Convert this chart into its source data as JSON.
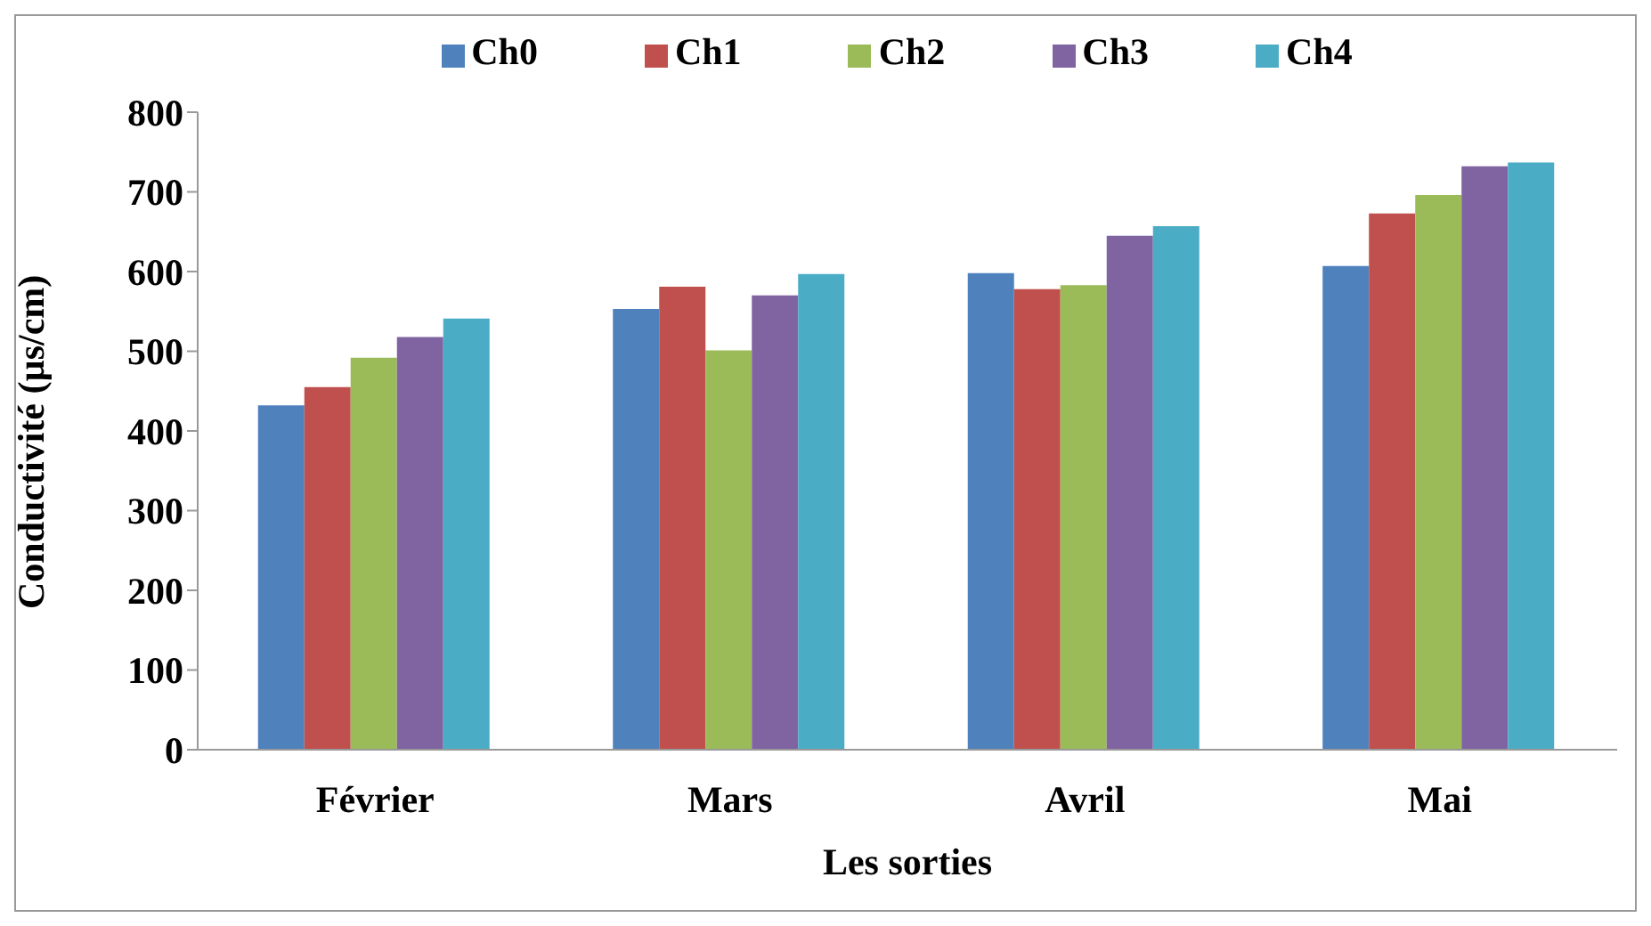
{
  "chart_data": {
    "type": "bar",
    "xlabel": "Les sorties",
    "ylabel": "Conductivité (µs/cm)",
    "categories": [
      "Février",
      "Mars",
      "Avril",
      "Mai"
    ],
    "series": [
      {
        "name": "Ch0",
        "color": "#4f81bd",
        "values": [
          432,
          553,
          598,
          607
        ]
      },
      {
        "name": "Ch1",
        "color": "#c0504d",
        "values": [
          455,
          581,
          578,
          673
        ]
      },
      {
        "name": "Ch2",
        "color": "#9bbb59",
        "values": [
          492,
          501,
          583,
          696
        ]
      },
      {
        "name": "Ch3",
        "color": "#8064a2",
        "values": [
          518,
          570,
          645,
          732
        ]
      },
      {
        "name": "Ch4",
        "color": "#4bacc6",
        "values": [
          541,
          597,
          657,
          737
        ]
      }
    ],
    "ylim": [
      0,
      800
    ],
    "yticks": [
      0,
      100,
      200,
      300,
      400,
      500,
      600,
      700,
      800
    ],
    "grid": false,
    "legend": "top"
  }
}
